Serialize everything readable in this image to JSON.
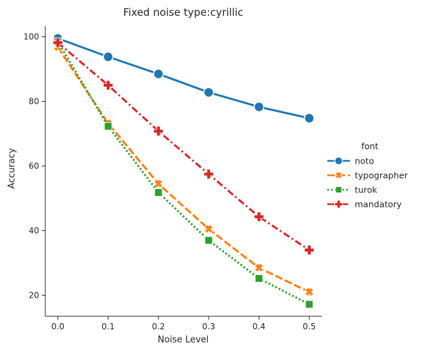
{
  "chart_data": {
    "type": "line",
    "title": "Fixed noise type:cyrillic",
    "xlabel": "Noise Level",
    "ylabel": "Accuracy",
    "x": [
      0.0,
      0.1,
      0.2,
      0.3,
      0.4,
      0.5
    ],
    "x_tick_labels": [
      "0.0",
      "0.1",
      "0.2",
      "0.3",
      "0.4",
      "0.5"
    ],
    "y_ticks": [
      20,
      40,
      60,
      80,
      100
    ],
    "y_tick_labels": [
      "20",
      "40",
      "60",
      "80",
      "100"
    ],
    "xlim": [
      -0.025,
      0.525
    ],
    "ylim": [
      13.5,
      103.3
    ],
    "grid": false,
    "legend": {
      "title": "font",
      "placement": "right, outside plot"
    },
    "series": [
      {
        "name": "noto",
        "values": [
          99.5,
          93.8,
          88.5,
          82.8,
          78.3,
          74.8
        ],
        "color": "#1f77b4",
        "marker": "circle",
        "dash": "solid"
      },
      {
        "name": "typographer",
        "values": [
          96.8,
          73.2,
          54.5,
          40.5,
          28.5,
          21.0
        ],
        "color": "#ff7f0e",
        "marker": "x",
        "dash": "dashed"
      },
      {
        "name": "turok",
        "values": [
          98.5,
          72.3,
          51.8,
          37.0,
          25.2,
          17.2
        ],
        "color": "#2ca02c",
        "marker": "square",
        "dash": "dotted"
      },
      {
        "name": "mandatory",
        "values": [
          98.2,
          85.0,
          70.8,
          57.5,
          44.3,
          34.0
        ],
        "color": "#d62728",
        "marker": "plus",
        "dash": "dashdot"
      }
    ]
  }
}
